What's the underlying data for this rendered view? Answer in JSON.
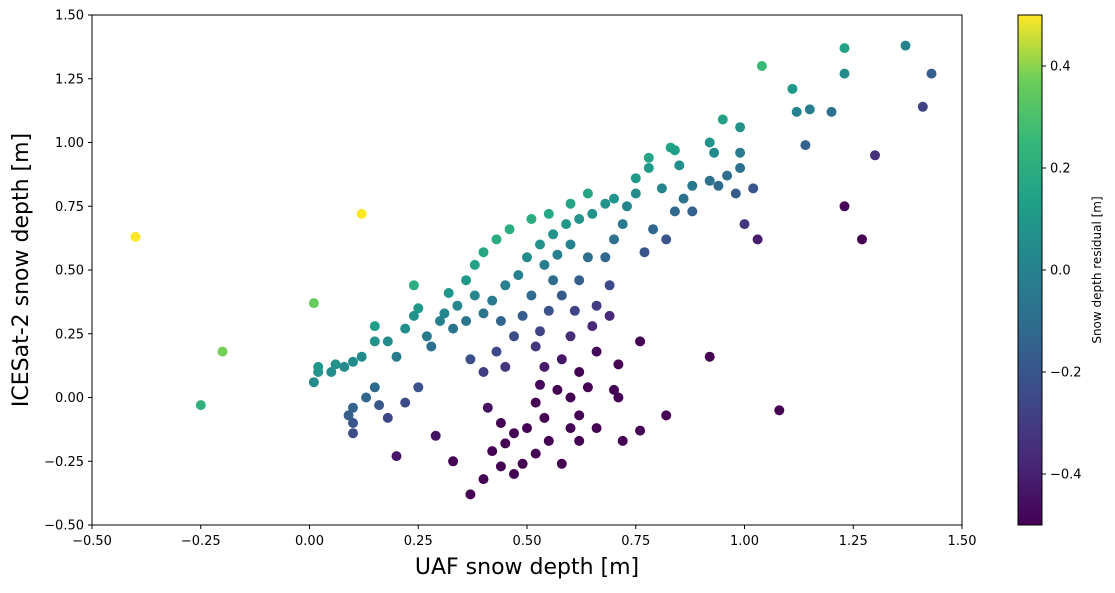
{
  "chart_data": {
    "type": "scatter",
    "title": "",
    "xlabel": "UAF snow depth [m]",
    "ylabel": "ICESat-2 snow depth [m]",
    "xlim": [
      -0.5,
      1.5
    ],
    "ylim": [
      -0.5,
      1.5
    ],
    "xticks": [
      "−0.50",
      "−0.25",
      "0.00",
      "0.25",
      "0.50",
      "0.75",
      "1.00",
      "1.25",
      "1.50"
    ],
    "yticks": [
      "−0.50",
      "−0.25",
      "0.00",
      "0.25",
      "0.50",
      "0.75",
      "1.00",
      "1.25",
      "1.50"
    ],
    "grid": false,
    "colormap": "viridis",
    "colorbar": {
      "label": "Snow depth residual [m]",
      "range": [
        -0.5,
        0.5
      ],
      "ticks": [
        "−0.4",
        "−0.2",
        "0.0",
        "0.2",
        "0.4"
      ]
    },
    "points": [
      {
        "x": -0.4,
        "y": 0.63
      },
      {
        "x": -0.2,
        "y": 0.18
      },
      {
        "x": -0.25,
        "y": -0.03
      },
      {
        "x": 0.01,
        "y": 0.37
      },
      {
        "x": 0.12,
        "y": 0.72
      },
      {
        "x": 1.04,
        "y": 1.3
      },
      {
        "x": 1.23,
        "y": 1.37
      },
      {
        "x": 1.37,
        "y": 1.38
      },
      {
        "x": 1.23,
        "y": 1.27
      },
      {
        "x": 1.43,
        "y": 1.27
      },
      {
        "x": 1.41,
        "y": 1.14
      },
      {
        "x": 1.11,
        "y": 1.21
      },
      {
        "x": 1.12,
        "y": 1.12
      },
      {
        "x": 1.15,
        "y": 1.13
      },
      {
        "x": 1.2,
        "y": 1.12
      },
      {
        "x": 1.14,
        "y": 0.99
      },
      {
        "x": 0.95,
        "y": 1.09
      },
      {
        "x": 0.99,
        "y": 1.06
      },
      {
        "x": 0.92,
        "y": 1.0
      },
      {
        "x": 0.93,
        "y": 0.96
      },
      {
        "x": 0.99,
        "y": 0.96
      },
      {
        "x": 0.99,
        "y": 0.9
      },
      {
        "x": 1.3,
        "y": 0.95
      },
      {
        "x": 1.23,
        "y": 0.75
      },
      {
        "x": 1.27,
        "y": 0.62
      },
      {
        "x": 1.03,
        "y": 0.62
      },
      {
        "x": 1.0,
        "y": 0.68
      },
      {
        "x": 1.02,
        "y": 0.82
      },
      {
        "x": 0.98,
        "y": 0.8
      },
      {
        "x": 0.96,
        "y": 0.87
      },
      {
        "x": 0.94,
        "y": 0.83
      },
      {
        "x": 0.92,
        "y": 0.85
      },
      {
        "x": 0.88,
        "y": 0.73
      },
      {
        "x": 0.84,
        "y": 0.73
      },
      {
        "x": 0.83,
        "y": 0.98
      },
      {
        "x": 0.84,
        "y": 0.97
      },
      {
        "x": 0.85,
        "y": 0.91
      },
      {
        "x": 0.78,
        "y": 0.94
      },
      {
        "x": 0.78,
        "y": 0.9
      },
      {
        "x": 0.75,
        "y": 0.86
      },
      {
        "x": 0.92,
        "y": 0.16
      },
      {
        "x": 1.08,
        "y": -0.05
      },
      {
        "x": 0.82,
        "y": -0.07
      },
      {
        "x": 0.76,
        "y": 0.22
      },
      {
        "x": 0.71,
        "y": 0.13
      },
      {
        "x": 0.7,
        "y": 0.03
      },
      {
        "x": 0.71,
        "y": 0.0
      },
      {
        "x": 0.76,
        "y": -0.13
      },
      {
        "x": 0.72,
        "y": -0.17
      },
      {
        "x": 0.69,
        "y": 0.32
      },
      {
        "x": 0.69,
        "y": 0.44
      },
      {
        "x": 0.66,
        "y": -0.12
      },
      {
        "x": 0.62,
        "y": -0.17
      },
      {
        "x": 0.58,
        "y": -0.26
      },
      {
        "x": 0.37,
        "y": -0.38
      },
      {
        "x": 0.4,
        "y": -0.32
      },
      {
        "x": 0.33,
        "y": -0.25
      },
      {
        "x": 0.29,
        "y": -0.15
      },
      {
        "x": 0.2,
        "y": -0.23
      },
      {
        "x": 0.1,
        "y": -0.14
      },
      {
        "x": 0.1,
        "y": -0.1
      },
      {
        "x": 0.09,
        "y": -0.07
      },
      {
        "x": 0.1,
        "y": -0.04
      },
      {
        "x": 0.18,
        "y": -0.08
      },
      {
        "x": 0.16,
        "y": -0.03
      },
      {
        "x": 0.22,
        "y": -0.02
      },
      {
        "x": 0.25,
        "y": 0.04
      },
      {
        "x": 0.13,
        "y": 0.0
      },
      {
        "x": 0.15,
        "y": 0.04
      },
      {
        "x": 0.01,
        "y": 0.06
      },
      {
        "x": 0.02,
        "y": 0.1
      },
      {
        "x": 0.02,
        "y": 0.12
      },
      {
        "x": 0.06,
        "y": 0.13
      },
      {
        "x": 0.08,
        "y": 0.12
      },
      {
        "x": 0.1,
        "y": 0.14
      },
      {
        "x": 0.12,
        "y": 0.16
      },
      {
        "x": 0.15,
        "y": 0.22
      },
      {
        "x": 0.15,
        "y": 0.28
      },
      {
        "x": 0.18,
        "y": 0.22
      },
      {
        "x": 0.22,
        "y": 0.27
      },
      {
        "x": 0.24,
        "y": 0.32
      },
      {
        "x": 0.25,
        "y": 0.35
      },
      {
        "x": 0.24,
        "y": 0.44
      },
      {
        "x": 0.27,
        "y": 0.24
      },
      {
        "x": 0.31,
        "y": 0.33
      },
      {
        "x": 0.32,
        "y": 0.41
      },
      {
        "x": 0.33,
        "y": 0.27
      },
      {
        "x": 0.36,
        "y": 0.3
      },
      {
        "x": 0.37,
        "y": 0.15
      },
      {
        "x": 0.4,
        "y": 0.1
      },
      {
        "x": 0.43,
        "y": 0.18
      },
      {
        "x": 0.45,
        "y": 0.12
      },
      {
        "x": 0.41,
        "y": -0.04
      },
      {
        "x": 0.44,
        "y": -0.1
      },
      {
        "x": 0.47,
        "y": -0.14
      },
      {
        "x": 0.45,
        "y": -0.18
      },
      {
        "x": 0.42,
        "y": -0.21
      },
      {
        "x": 0.44,
        "y": -0.27
      },
      {
        "x": 0.47,
        "y": -0.3
      },
      {
        "x": 0.49,
        "y": -0.26
      },
      {
        "x": 0.52,
        "y": -0.22
      },
      {
        "x": 0.55,
        "y": -0.17
      },
      {
        "x": 0.6,
        "y": -0.12
      },
      {
        "x": 0.62,
        "y": -0.07
      },
      {
        "x": 0.6,
        "y": 0.0
      },
      {
        "x": 0.64,
        "y": 0.04
      },
      {
        "x": 0.62,
        "y": 0.1
      },
      {
        "x": 0.66,
        "y": 0.18
      },
      {
        "x": 0.65,
        "y": 0.28
      },
      {
        "x": 0.66,
        "y": 0.36
      },
      {
        "x": 0.68,
        "y": 0.55
      },
      {
        "x": 0.7,
        "y": 0.62
      },
      {
        "x": 0.72,
        "y": 0.68
      },
      {
        "x": 0.73,
        "y": 0.75
      },
      {
        "x": 0.75,
        "y": 0.8
      },
      {
        "x": 0.7,
        "y": 0.78
      },
      {
        "x": 0.64,
        "y": 0.8
      },
      {
        "x": 0.6,
        "y": 0.76
      },
      {
        "x": 0.55,
        "y": 0.72
      },
      {
        "x": 0.51,
        "y": 0.7
      },
      {
        "x": 0.46,
        "y": 0.66
      },
      {
        "x": 0.43,
        "y": 0.62
      },
      {
        "x": 0.4,
        "y": 0.57
      },
      {
        "x": 0.38,
        "y": 0.52
      },
      {
        "x": 0.36,
        "y": 0.46
      },
      {
        "x": 0.38,
        "y": 0.4
      },
      {
        "x": 0.42,
        "y": 0.38
      },
      {
        "x": 0.45,
        "y": 0.44
      },
      {
        "x": 0.48,
        "y": 0.48
      },
      {
        "x": 0.5,
        "y": 0.55
      },
      {
        "x": 0.53,
        "y": 0.6
      },
      {
        "x": 0.56,
        "y": 0.64
      },
      {
        "x": 0.59,
        "y": 0.68
      },
      {
        "x": 0.62,
        "y": 0.7
      },
      {
        "x": 0.65,
        "y": 0.72
      },
      {
        "x": 0.68,
        "y": 0.76
      },
      {
        "x": 0.54,
        "y": 0.52
      },
      {
        "x": 0.56,
        "y": 0.46
      },
      {
        "x": 0.58,
        "y": 0.4
      },
      {
        "x": 0.55,
        "y": 0.34
      },
      {
        "x": 0.53,
        "y": 0.26
      },
      {
        "x": 0.52,
        "y": 0.2
      },
      {
        "x": 0.54,
        "y": 0.12
      },
      {
        "x": 0.53,
        "y": 0.05
      },
      {
        "x": 0.52,
        "y": -0.02
      },
      {
        "x": 0.54,
        "y": -0.08
      },
      {
        "x": 0.5,
        "y": -0.12
      },
      {
        "x": 0.57,
        "y": 0.03
      },
      {
        "x": 0.58,
        "y": 0.15
      },
      {
        "x": 0.6,
        "y": 0.24
      },
      {
        "x": 0.61,
        "y": 0.34
      },
      {
        "x": 0.62,
        "y": 0.46
      },
      {
        "x": 0.64,
        "y": 0.55
      },
      {
        "x": 0.6,
        "y": 0.6
      },
      {
        "x": 0.57,
        "y": 0.56
      },
      {
        "x": 0.51,
        "y": 0.4
      },
      {
        "x": 0.49,
        "y": 0.32
      },
      {
        "x": 0.47,
        "y": 0.24
      },
      {
        "x": 0.44,
        "y": 0.3
      },
      {
        "x": 0.4,
        "y": 0.33
      },
      {
        "x": 0.34,
        "y": 0.36
      },
      {
        "x": 0.3,
        "y": 0.3
      },
      {
        "x": 0.28,
        "y": 0.2
      },
      {
        "x": 0.2,
        "y": 0.16
      },
      {
        "x": 0.05,
        "y": 0.1
      },
      {
        "x": 0.79,
        "y": 0.66
      },
      {
        "x": 0.82,
        "y": 0.62
      },
      {
        "x": 0.77,
        "y": 0.57
      },
      {
        "x": 0.86,
        "y": 0.78
      },
      {
        "x": 0.81,
        "y": 0.82
      },
      {
        "x": 0.88,
        "y": 0.83
      }
    ]
  }
}
